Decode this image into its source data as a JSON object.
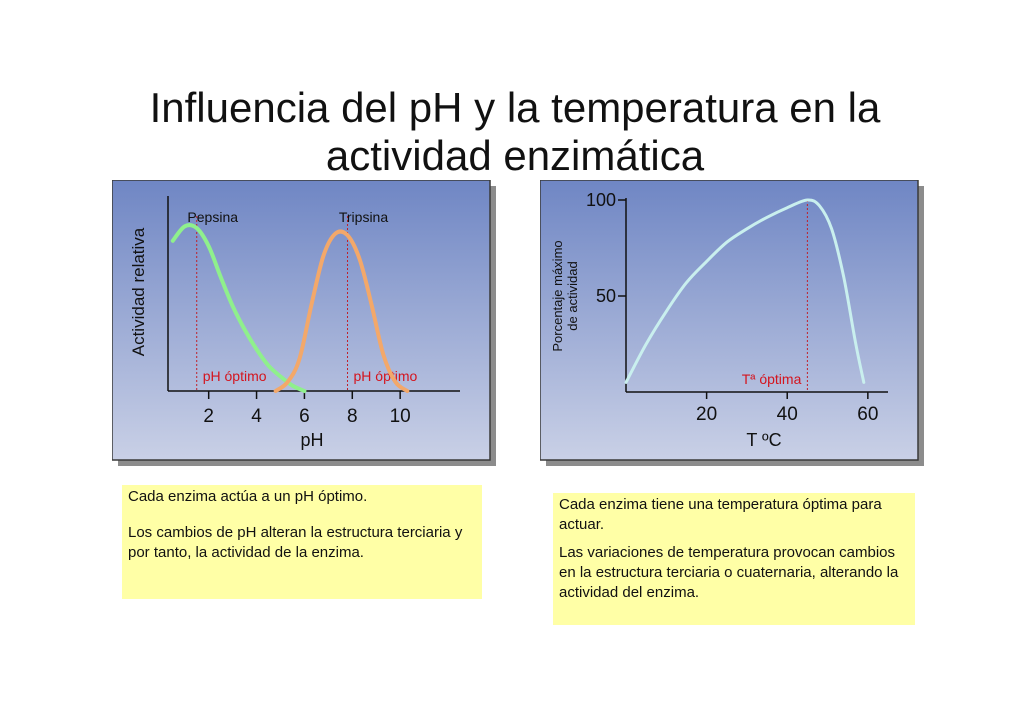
{
  "title_line1": "Influencia del pH y la temperatura en la",
  "title_line2": "actividad enzimática",
  "chart_data": [
    {
      "type": "line",
      "xlabel": "pH",
      "ylabel": "Actividad relativa",
      "xticks": [
        "2",
        "4",
        "6",
        "8",
        "10"
      ],
      "xlim": [
        0.3,
        12.5
      ],
      "ylim": [
        0,
        1
      ],
      "series": [
        {
          "name": "Pepsina",
          "color": "#8ff08c",
          "x": [
            0.5,
            1.0,
            1.5,
            2.0,
            2.5,
            3.0,
            3.5,
            4.0,
            4.5,
            5.0,
            5.5,
            6.0
          ],
          "y": [
            0.83,
            0.91,
            0.9,
            0.8,
            0.63,
            0.47,
            0.34,
            0.23,
            0.14,
            0.08,
            0.03,
            0.0
          ]
        },
        {
          "name": "Tripsina",
          "color": "#f3a86a",
          "x": [
            4.8,
            5.3,
            5.8,
            6.3,
            6.8,
            7.3,
            7.8,
            8.3,
            8.8,
            9.3,
            9.8,
            10.3
          ],
          "y": [
            0.0,
            0.05,
            0.18,
            0.48,
            0.75,
            0.87,
            0.86,
            0.73,
            0.48,
            0.2,
            0.05,
            0.0
          ]
        }
      ],
      "optima": [
        {
          "x": 1.5,
          "label": "pH óptimo"
        },
        {
          "x": 7.8,
          "label": "pH óptimo"
        }
      ],
      "grid": false
    },
    {
      "type": "line",
      "xlabel": "T ºC",
      "ylabel_line1": "Porcentaje máximo",
      "ylabel_line2": "de actividad",
      "xticks": [
        "20",
        "40",
        "60"
      ],
      "yticks": [
        "100",
        "50"
      ],
      "xlim": [
        0,
        65
      ],
      "ylim": [
        0,
        100
      ],
      "series": [
        {
          "color": "#c9efee",
          "x": [
            0,
            5,
            10,
            15,
            20,
            25,
            30,
            35,
            40,
            45,
            48,
            51,
            54,
            57,
            59
          ],
          "y": [
            5,
            25,
            42,
            57,
            68,
            78,
            85,
            91,
            96,
            100,
            97,
            85,
            60,
            25,
            5
          ]
        }
      ],
      "optima": [
        {
          "x": 45,
          "label": "Tª óptima"
        }
      ],
      "grid": false
    }
  ],
  "note_left_1": "Cada enzima actúa a un pH óptimo.",
  "note_left_2": "Los cambios de pH alteran la estructura terciaria y por tanto, la actividad de la enzima.",
  "note_right_1": "Cada enzima tiene una temperatura óptima para actuar.",
  "note_right_2": "Las variaciones de temperatura provocan cambios en la estructura terciaria o cuaternaria, alterando la actividad del enzima."
}
